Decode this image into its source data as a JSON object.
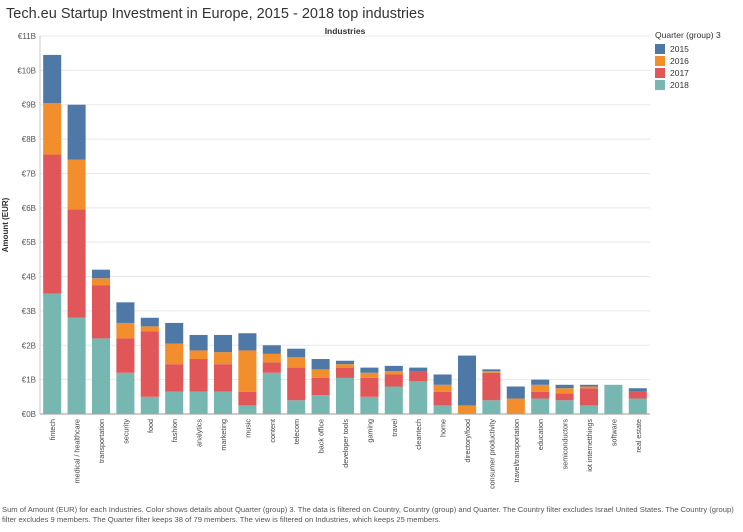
{
  "page": {
    "title": "Tech.eu Startup Investment in Europe, 2015 - 2018 top industries",
    "footer": "Sum of Amount (EUR) for each Industries.  Color shows details about Quarter (group) 3. The data is filtered on Country, Country (group) and Quarter. The Country filter excludes Israel United States. The Country (group) filter excludes 9 members. The Quarter filter keeps 38 of 79 members. The view is filtered on Industries, which keeps 25 members."
  },
  "legend": {
    "title": "Quarter (group) 3",
    "items": [
      {
        "label": "2015",
        "color": "#4e79a7"
      },
      {
        "label": "2016",
        "color": "#f28e2b"
      },
      {
        "label": "2017",
        "color": "#e15759"
      },
      {
        "label": "2018",
        "color": "#76b7b2"
      }
    ]
  },
  "chart_data": {
    "type": "bar",
    "stacked": true,
    "title": "Industries",
    "xlabel": "",
    "ylabel": "Amount (EUR)",
    "ylim": [
      0,
      11
    ],
    "ytick_values": [
      0,
      1,
      2,
      3,
      4,
      5,
      6,
      7,
      8,
      9,
      10,
      11
    ],
    "ytick_labels": [
      "€0B",
      "€1B",
      "€2B",
      "€3B",
      "€4B",
      "€5B",
      "€6B",
      "€7B",
      "€8B",
      "€9B",
      "€10B",
      "€11B"
    ],
    "grid": true,
    "legend_position": "top-right",
    "categories": [
      "fintech",
      "medical / healthcare",
      "transportation",
      "security",
      "food",
      "fashion",
      "analytics",
      "marketing",
      "music",
      "content",
      "telecom",
      "back office",
      "developer tools",
      "gaming",
      "travel",
      "cleantech",
      "home",
      "directory/food",
      "consumer productivity",
      "travel/transportation",
      "education",
      "semiconductors",
      "iot internetthings",
      "software",
      "real estate"
    ],
    "series": [
      {
        "name": "2018",
        "values": [
          3.5,
          2.8,
          2.2,
          1.2,
          0.5,
          0.65,
          0.65,
          0.65,
          0.25,
          1.2,
          0.4,
          0.55,
          1.05,
          0.5,
          0.8,
          0.95,
          0.25,
          0.0,
          0.4,
          0.0,
          0.45,
          0.4,
          0.25,
          0.85,
          0.45
        ]
      },
      {
        "name": "2017",
        "values": [
          4.05,
          3.15,
          1.55,
          1.0,
          1.9,
          0.8,
          0.95,
          0.8,
          0.4,
          0.3,
          0.95,
          0.5,
          0.3,
          0.55,
          0.35,
          0.3,
          0.4,
          0.0,
          0.8,
          0.0,
          0.2,
          0.2,
          0.5,
          0.0,
          0.2
        ]
      },
      {
        "name": "2016",
        "values": [
          1.5,
          1.45,
          0.2,
          0.45,
          0.15,
          0.6,
          0.25,
          0.35,
          1.2,
          0.25,
          0.3,
          0.25,
          0.1,
          0.15,
          0.1,
          0.0,
          0.2,
          0.25,
          0.05,
          0.45,
          0.2,
          0.15,
          0.05,
          0.0,
          0.0
        ]
      },
      {
        "name": "2015",
        "values": [
          1.4,
          1.6,
          0.25,
          0.6,
          0.25,
          0.6,
          0.45,
          0.5,
          0.5,
          0.25,
          0.25,
          0.3,
          0.1,
          0.15,
          0.15,
          0.1,
          0.3,
          1.45,
          0.05,
          0.35,
          0.15,
          0.1,
          0.05,
          0.0,
          0.1
        ]
      }
    ]
  }
}
